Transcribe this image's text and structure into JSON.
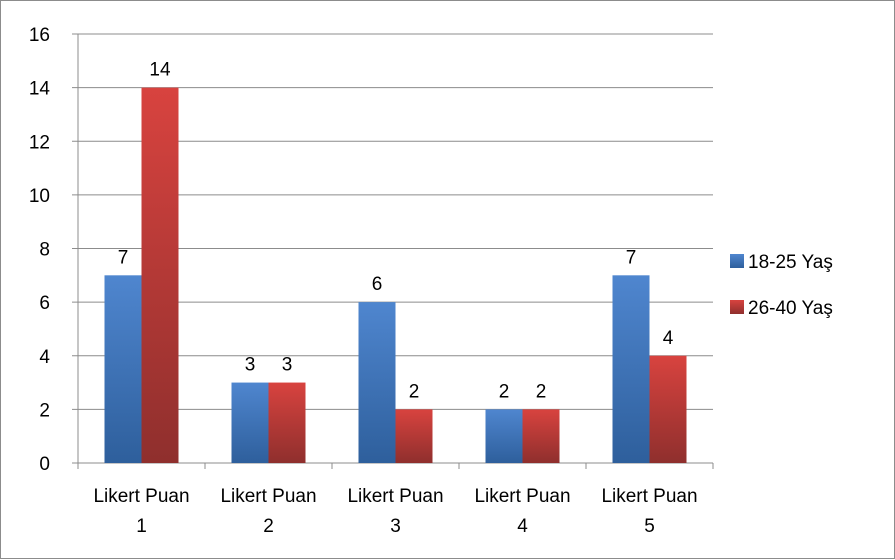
{
  "chart_data": {
    "type": "bar",
    "title": "",
    "xlabel": "",
    "ylabel": "",
    "categories": [
      [
        "Likert Puan",
        "1"
      ],
      [
        "Likert Puan",
        "2"
      ],
      [
        "Likert Puan",
        "3"
      ],
      [
        "Likert Puan",
        "4"
      ],
      [
        "Likert Puan",
        "5"
      ]
    ],
    "series": [
      {
        "name": "18-25 Yaş",
        "values": [
          7,
          3,
          6,
          2,
          7
        ],
        "color": "#4a7ebb",
        "color_dark": "#2e5f9c",
        "color_light": "#4f86cf"
      },
      {
        "name": "26-40 Yaş",
        "values": [
          14,
          3,
          2,
          2,
          4
        ],
        "color": "#be4b48",
        "color_dark": "#8f2f2d",
        "color_light": "#d8433f"
      }
    ],
    "ylim": [
      0,
      16
    ],
    "yticks": [
      0,
      2,
      4,
      6,
      8,
      10,
      12,
      14,
      16
    ],
    "grid": true,
    "legend_position": "right",
    "data_labels": true
  }
}
